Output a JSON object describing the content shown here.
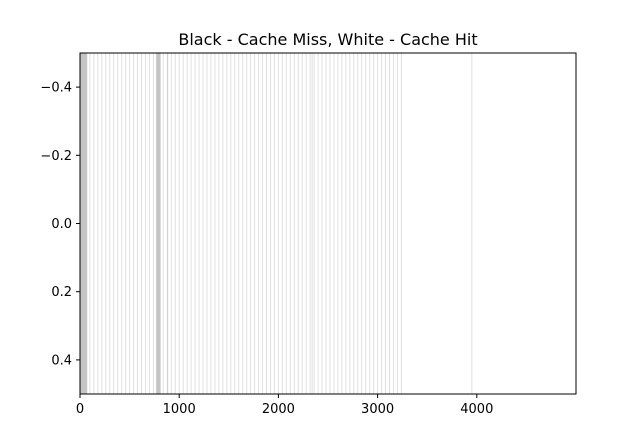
{
  "chart_data": {
    "type": "heatmap",
    "title": "Black - Cache Miss, White - Cache Hit",
    "xlabel": "",
    "ylabel": "",
    "xlim": [
      0,
      5000
    ],
    "ylim": [
      0.5,
      -0.5
    ],
    "y_inverted": true,
    "x_ticks": [
      0,
      1000,
      2000,
      3000,
      4000
    ],
    "x_tick_labels": [
      "0",
      "1000",
      "2000",
      "3000",
      "4000"
    ],
    "y_ticks": [
      -0.4,
      -0.2,
      0.0,
      0.2,
      0.4
    ],
    "y_tick_labels": [
      "−0.4",
      "−0.2",
      "0.0",
      "0.2",
      "0.4"
    ],
    "grid": false,
    "colors": {
      "miss": "#000000",
      "hit": "#ffffff"
    },
    "miss_accesses": [
      0,
      5,
      10,
      15,
      20,
      25,
      30,
      35,
      40,
      45,
      50,
      55,
      60,
      65,
      70,
      100,
      140,
      180,
      220,
      260,
      300,
      340,
      380,
      420,
      460,
      500,
      540,
      580,
      620,
      660,
      700,
      740,
      770,
      775,
      780,
      785,
      790,
      795,
      800,
      805,
      810,
      840,
      880,
      885,
      920,
      960,
      1000,
      1040,
      1080,
      1120,
      1160,
      1200,
      1240,
      1280,
      1320,
      1360,
      1400,
      1440,
      1480,
      1520,
      1560,
      1600,
      1640,
      1680,
      1720,
      1760,
      1800,
      1840,
      1880,
      1920,
      1960,
      2000,
      2040,
      2080,
      2120,
      2160,
      2200,
      2240,
      2280,
      2320,
      2340,
      2360,
      2400,
      2440,
      2480,
      2520,
      2560,
      2600,
      2640,
      2680,
      2720,
      2760,
      2800,
      2840,
      2880,
      2920,
      2960,
      3000,
      3040,
      3080,
      3120,
      3160,
      3200,
      3240,
      3950
    ]
  }
}
